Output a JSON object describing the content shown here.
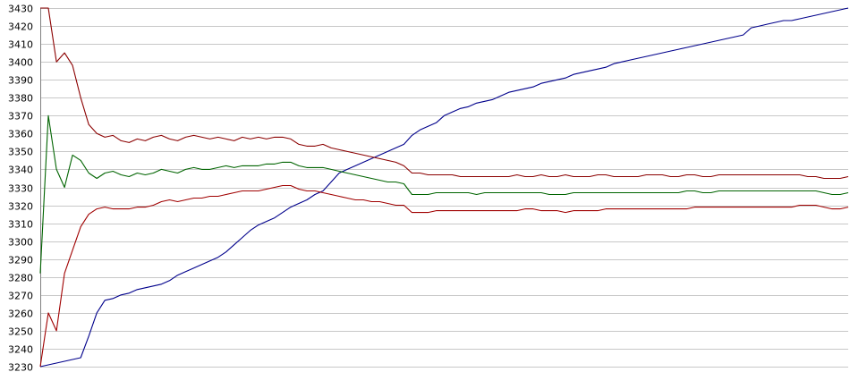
{
  "chart_data": {
    "type": "line",
    "title": "",
    "xlabel": "",
    "ylabel": "",
    "ylim": [
      3230,
      3430
    ],
    "xlim": [
      0,
      100
    ],
    "grid": true,
    "y_ticks": [
      {
        "value": 3430,
        "label": "3430"
      },
      {
        "value": 3420,
        "label": "3420"
      },
      {
        "value": 3410,
        "label": "3410"
      },
      {
        "value": 3400,
        "label": "3400"
      },
      {
        "value": 3390,
        "label": "3390"
      },
      {
        "value": 3380,
        "label": "3380"
      },
      {
        "value": 3370,
        "label": "3370"
      },
      {
        "value": 3360,
        "label": "3360"
      },
      {
        "value": 3350,
        "label": "3350"
      },
      {
        "value": 3340,
        "label": "3340"
      },
      {
        "value": 3330,
        "label": "3330"
      },
      {
        "value": 3320,
        "label": "3320"
      },
      {
        "value": 3310,
        "label": "3310"
      },
      {
        "value": 3300,
        "label": "3300"
      },
      {
        "value": 3290,
        "label": "3290"
      },
      {
        "value": 3280,
        "label": "3280"
      },
      {
        "value": 3270,
        "label": "3270"
      },
      {
        "value": 3260,
        "label": "3260"
      },
      {
        "value": 3250,
        "label": "3250"
      },
      {
        "value": 3240,
        "label": "3240"
      },
      {
        "value": 3230,
        "label": "3230"
      }
    ],
    "series": [
      {
        "color": "#00008b",
        "x": [
          0,
          1,
          2,
          3,
          4,
          5,
          6,
          7,
          8,
          9,
          10,
          11,
          12,
          13,
          14,
          15,
          16,
          17,
          18,
          19,
          20,
          21,
          22,
          23,
          24,
          25,
          26,
          27,
          28,
          29,
          30,
          31,
          32,
          33,
          34,
          35,
          36,
          37,
          38,
          39,
          40,
          41,
          42,
          43,
          44,
          45,
          46,
          47,
          48,
          49,
          50,
          51,
          52,
          53,
          54,
          55,
          56,
          57,
          58,
          59,
          60,
          61,
          62,
          63,
          64,
          65,
          66,
          67,
          68,
          69,
          70,
          71,
          72,
          73,
          74,
          75,
          76,
          77,
          78,
          79,
          80,
          81,
          82,
          83,
          84,
          85,
          86,
          87,
          88,
          89,
          90,
          91,
          92,
          93,
          94,
          95,
          96,
          97,
          98,
          99,
          100
        ],
        "values": [
          3230,
          3231,
          3232,
          3233,
          3234,
          3235,
          3247,
          3260,
          3267,
          3268,
          3270,
          3271,
          3273,
          3274,
          3275,
          3276,
          3278,
          3281,
          3283,
          3285,
          3287,
          3289,
          3291,
          3294,
          3298,
          3302,
          3306,
          3309,
          3311,
          3313,
          3316,
          3319,
          3321,
          3323,
          3326,
          3328,
          3333,
          3338,
          3340,
          3342,
          3344,
          3346,
          3348,
          3350,
          3352,
          3354,
          3359,
          3362,
          3364,
          3366,
          3370,
          3372,
          3374,
          3375,
          3377,
          3378,
          3379,
          3381,
          3383,
          3384,
          3385,
          3386,
          3388,
          3389,
          3390,
          3391,
          3393,
          3394,
          3395,
          3396,
          3397,
          3399,
          3400,
          3401,
          3402,
          3403,
          3404,
          3405,
          3406,
          3407,
          3408,
          3409,
          3410,
          3411,
          3412,
          3413,
          3414,
          3415,
          3419,
          3420,
          3421,
          3422,
          3423,
          3423,
          3424,
          3425,
          3426,
          3427,
          3428,
          3429,
          3430
        ]
      },
      {
        "color": "#8b0000",
        "x": [
          0,
          1,
          2,
          3,
          4,
          5,
          6,
          7,
          8,
          9,
          10,
          11,
          12,
          13,
          14,
          15,
          16,
          17,
          18,
          19,
          20,
          21,
          22,
          23,
          24,
          25,
          26,
          27,
          28,
          29,
          30,
          31,
          32,
          33,
          34,
          35,
          36,
          37,
          38,
          39,
          40,
          41,
          42,
          43,
          44,
          45,
          46,
          47,
          48,
          49,
          50,
          51,
          52,
          53,
          54,
          55,
          56,
          57,
          58,
          59,
          60,
          61,
          62,
          63,
          64,
          65,
          66,
          67,
          68,
          69,
          70,
          71,
          72,
          73,
          74,
          75,
          76,
          77,
          78,
          79,
          80,
          81,
          82,
          83,
          84,
          85,
          86,
          87,
          88,
          89,
          90,
          91,
          92,
          93,
          94,
          95,
          96,
          97,
          98,
          99,
          100
        ],
        "values": [
          3430,
          3430,
          3400,
          3405,
          3398,
          3380,
          3365,
          3360,
          3358,
          3359,
          3356,
          3355,
          3357,
          3356,
          3358,
          3359,
          3357,
          3356,
          3358,
          3359,
          3358,
          3357,
          3358,
          3357,
          3356,
          3358,
          3357,
          3358,
          3357,
          3358,
          3358,
          3357,
          3354,
          3353,
          3353,
          3354,
          3352,
          3351,
          3350,
          3349,
          3348,
          3347,
          3346,
          3345,
          3344,
          3342,
          3338,
          3338,
          3337,
          3337,
          3337,
          3337,
          3336,
          3336,
          3336,
          3336,
          3336,
          3336,
          3336,
          3337,
          3336,
          3336,
          3337,
          3336,
          3336,
          3337,
          3336,
          3336,
          3336,
          3337,
          3337,
          3336,
          3336,
          3336,
          3336,
          3337,
          3337,
          3337,
          3336,
          3336,
          3337,
          3337,
          3336,
          3336,
          3337,
          3337,
          3337,
          3337,
          3337,
          3337,
          3337,
          3337,
          3337,
          3337,
          3337,
          3336,
          3336,
          3335,
          3335,
          3335,
          3336
        ]
      },
      {
        "color": "#006400",
        "x": [
          0,
          1,
          2,
          3,
          4,
          5,
          6,
          7,
          8,
          9,
          10,
          11,
          12,
          13,
          14,
          15,
          16,
          17,
          18,
          19,
          20,
          21,
          22,
          23,
          24,
          25,
          26,
          27,
          28,
          29,
          30,
          31,
          32,
          33,
          34,
          35,
          36,
          37,
          38,
          39,
          40,
          41,
          42,
          43,
          44,
          45,
          46,
          47,
          48,
          49,
          50,
          51,
          52,
          53,
          54,
          55,
          56,
          57,
          58,
          59,
          60,
          61,
          62,
          63,
          64,
          65,
          66,
          67,
          68,
          69,
          70,
          71,
          72,
          73,
          74,
          75,
          76,
          77,
          78,
          79,
          80,
          81,
          82,
          83,
          84,
          85,
          86,
          87,
          88,
          89,
          90,
          91,
          92,
          93,
          94,
          95,
          96,
          97,
          98,
          99,
          100
        ],
        "values": [
          3282,
          3370,
          3340,
          3330,
          3348,
          3345,
          3338,
          3335,
          3338,
          3339,
          3337,
          3336,
          3338,
          3337,
          3338,
          3340,
          3339,
          3338,
          3340,
          3341,
          3340,
          3340,
          3341,
          3342,
          3341,
          3342,
          3342,
          3342,
          3343,
          3343,
          3344,
          3344,
          3342,
          3341,
          3341,
          3341,
          3340,
          3339,
          3338,
          3337,
          3336,
          3335,
          3334,
          3333,
          3333,
          3332,
          3326,
          3326,
          3326,
          3327,
          3327,
          3327,
          3327,
          3327,
          3326,
          3327,
          3327,
          3327,
          3327,
          3327,
          3327,
          3327,
          3327,
          3326,
          3326,
          3326,
          3327,
          3327,
          3327,
          3327,
          3327,
          3327,
          3327,
          3327,
          3327,
          3327,
          3327,
          3327,
          3327,
          3327,
          3328,
          3328,
          3327,
          3327,
          3328,
          3328,
          3328,
          3328,
          3328,
          3328,
          3328,
          3328,
          3328,
          3328,
          3328,
          3328,
          3328,
          3327,
          3326,
          3326,
          3327
        ]
      },
      {
        "color": "#a00000",
        "x": [
          0,
          1,
          2,
          3,
          4,
          5,
          6,
          7,
          8,
          9,
          10,
          11,
          12,
          13,
          14,
          15,
          16,
          17,
          18,
          19,
          20,
          21,
          22,
          23,
          24,
          25,
          26,
          27,
          28,
          29,
          30,
          31,
          32,
          33,
          34,
          35,
          36,
          37,
          38,
          39,
          40,
          41,
          42,
          43,
          44,
          45,
          46,
          47,
          48,
          49,
          50,
          51,
          52,
          53,
          54,
          55,
          56,
          57,
          58,
          59,
          60,
          61,
          62,
          63,
          64,
          65,
          66,
          67,
          68,
          69,
          70,
          71,
          72,
          73,
          74,
          75,
          76,
          77,
          78,
          79,
          80,
          81,
          82,
          83,
          84,
          85,
          86,
          87,
          88,
          89,
          90,
          91,
          92,
          93,
          94,
          95,
          96,
          97,
          98,
          99,
          100
        ],
        "values": [
          3230,
          3260,
          3250,
          3282,
          3295,
          3308,
          3315,
          3318,
          3319,
          3318,
          3318,
          3318,
          3319,
          3319,
          3320,
          3322,
          3323,
          3322,
          3323,
          3324,
          3324,
          3325,
          3325,
          3326,
          3327,
          3328,
          3328,
          3328,
          3329,
          3330,
          3331,
          3331,
          3329,
          3328,
          3328,
          3327,
          3326,
          3325,
          3324,
          3323,
          3323,
          3322,
          3322,
          3321,
          3320,
          3320,
          3316,
          3316,
          3316,
          3317,
          3317,
          3317,
          3317,
          3317,
          3317,
          3317,
          3317,
          3317,
          3317,
          3317,
          3318,
          3318,
          3317,
          3317,
          3317,
          3316,
          3317,
          3317,
          3317,
          3317,
          3318,
          3318,
          3318,
          3318,
          3318,
          3318,
          3318,
          3318,
          3318,
          3318,
          3318,
          3319,
          3319,
          3319,
          3319,
          3319,
          3319,
          3319,
          3319,
          3319,
          3319,
          3319,
          3319,
          3319,
          3320,
          3320,
          3320,
          3319,
          3318,
          3318,
          3319
        ]
      }
    ]
  }
}
